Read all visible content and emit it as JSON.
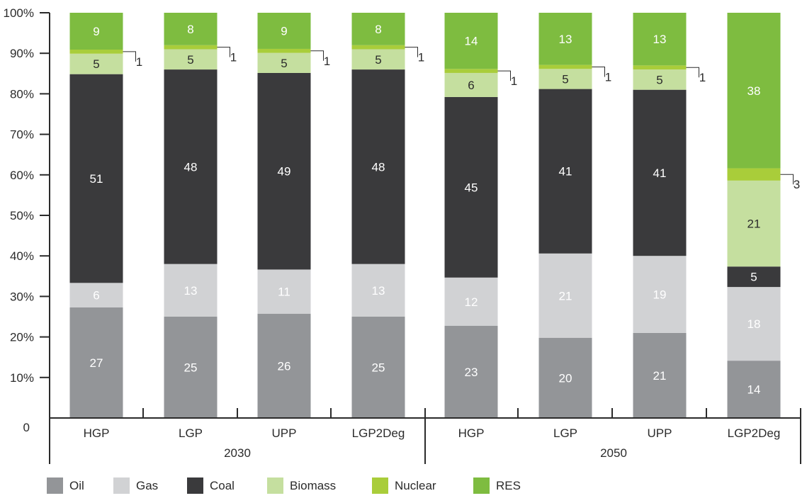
{
  "chart_data": {
    "type": "bar",
    "stacked": true,
    "y_tick_labels": [
      "0",
      "10%",
      "20%",
      "30%",
      "40%",
      "50%",
      "60%",
      "70%",
      "80%",
      "90%",
      "100%"
    ],
    "ylim": [
      0,
      100
    ],
    "groups": [
      {
        "label": "2030",
        "categories": [
          "HGP",
          "LGP",
          "UPP",
          "LGP2Deg"
        ]
      },
      {
        "label": "2050",
        "categories": [
          "HGP",
          "LGP",
          "UPP",
          "LGP2Deg"
        ]
      }
    ],
    "series": [
      {
        "name": "Oil",
        "color": "#939598",
        "label_color": "#ffffff",
        "values": [
          27,
          25,
          26,
          25,
          23,
          20,
          21,
          14
        ]
      },
      {
        "name": "Gas",
        "color": "#d1d2d4",
        "label_color": "#ffffff",
        "values": [
          6,
          13,
          11,
          13,
          12,
          21,
          19,
          18
        ]
      },
      {
        "name": "Coal",
        "color": "#3a3a3c",
        "label_color": "#ffffff",
        "values": [
          51,
          48,
          49,
          48,
          45,
          41,
          41,
          5
        ]
      },
      {
        "name": "Biomass",
        "color": "#c5df9f",
        "label_color": "#2b2b2b",
        "values": [
          5,
          5,
          5,
          5,
          6,
          5,
          5,
          21
        ]
      },
      {
        "name": "Nuclear",
        "color": "#a9cd3a",
        "label_color": "#2b2b2b",
        "values": [
          1,
          1,
          1,
          1,
          1,
          1,
          1,
          3
        ]
      },
      {
        "name": "RES",
        "color": "#7ebc40",
        "label_color": "#ffffff",
        "values": [
          9,
          8,
          9,
          8,
          14,
          13,
          13,
          38
        ]
      }
    ],
    "legend_position": "bottom",
    "grid": false
  }
}
